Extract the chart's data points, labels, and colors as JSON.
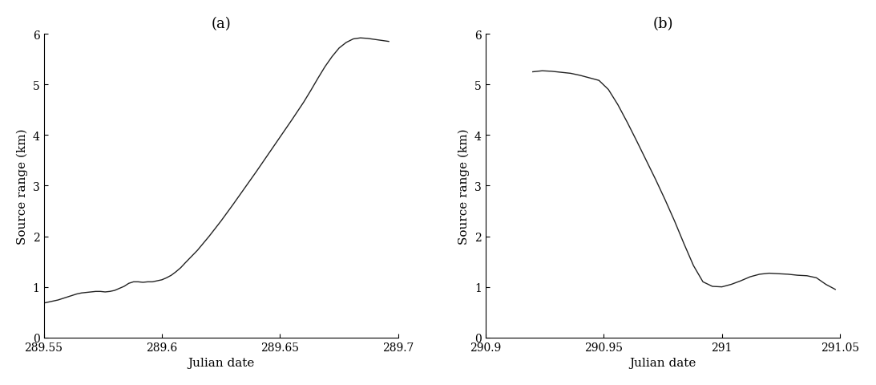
{
  "panel_a": {
    "title": "(a)",
    "xlabel": "Julian date",
    "ylabel": "Source range (km)",
    "xlim": [
      289.55,
      289.7
    ],
    "ylim": [
      0,
      6
    ],
    "xticks": [
      289.55,
      289.6,
      289.65,
      289.7
    ],
    "xtick_labels": [
      "289.55",
      "289.6",
      "289.65",
      "289.7"
    ],
    "yticks": [
      0,
      1,
      2,
      3,
      4,
      5,
      6
    ],
    "x": [
      289.55,
      289.552,
      289.554,
      289.556,
      289.558,
      289.56,
      289.562,
      289.564,
      289.566,
      289.568,
      289.57,
      289.572,
      289.574,
      289.576,
      289.578,
      289.58,
      289.582,
      289.584,
      289.586,
      289.588,
      289.59,
      289.592,
      289.594,
      289.596,
      289.598,
      289.6,
      289.602,
      289.604,
      289.606,
      289.608,
      289.61,
      289.615,
      289.62,
      289.625,
      289.63,
      289.635,
      289.64,
      289.645,
      289.65,
      289.655,
      289.66,
      289.663,
      289.666,
      289.669,
      289.672,
      289.675,
      289.678,
      289.681,
      289.684,
      289.687,
      289.69,
      289.693,
      289.696
    ],
    "y": [
      0.68,
      0.7,
      0.72,
      0.74,
      0.77,
      0.8,
      0.83,
      0.86,
      0.88,
      0.89,
      0.9,
      0.91,
      0.91,
      0.9,
      0.91,
      0.93,
      0.97,
      1.01,
      1.07,
      1.1,
      1.1,
      1.09,
      1.1,
      1.1,
      1.12,
      1.14,
      1.18,
      1.23,
      1.3,
      1.38,
      1.48,
      1.72,
      2.0,
      2.3,
      2.62,
      2.95,
      3.28,
      3.62,
      3.96,
      4.3,
      4.65,
      4.88,
      5.12,
      5.35,
      5.55,
      5.72,
      5.83,
      5.9,
      5.92,
      5.91,
      5.89,
      5.87,
      5.85
    ]
  },
  "panel_b": {
    "title": "(b)",
    "xlabel": "Julian date",
    "ylabel": "Source range (km)",
    "xlim": [
      290.9,
      291.05
    ],
    "ylim": [
      0,
      6
    ],
    "xticks": [
      290.9,
      290.95,
      291.0,
      291.05
    ],
    "xtick_labels": [
      "290.9",
      "290.95",
      "291",
      "291.05"
    ],
    "yticks": [
      0,
      1,
      2,
      3,
      4,
      5,
      6
    ],
    "x": [
      290.92,
      290.924,
      290.928,
      290.932,
      290.936,
      290.94,
      290.944,
      290.948,
      290.952,
      290.956,
      290.96,
      290.964,
      290.968,
      290.972,
      290.976,
      290.98,
      290.984,
      290.988,
      290.992,
      290.996,
      291.0,
      291.004,
      291.008,
      291.012,
      291.016,
      291.02,
      291.024,
      291.028,
      291.032,
      291.036,
      291.04,
      291.044,
      291.048
    ],
    "y": [
      5.25,
      5.27,
      5.26,
      5.24,
      5.22,
      5.18,
      5.13,
      5.08,
      4.9,
      4.6,
      4.25,
      3.88,
      3.5,
      3.12,
      2.72,
      2.3,
      1.85,
      1.42,
      1.1,
      1.01,
      1.0,
      1.05,
      1.12,
      1.2,
      1.25,
      1.27,
      1.26,
      1.25,
      1.23,
      1.22,
      1.18,
      1.05,
      0.95
    ]
  },
  "line_color": "#222222",
  "line_width": 1.0,
  "background_color": "#ffffff",
  "tick_fontsize": 10,
  "label_fontsize": 11,
  "title_fontsize": 13
}
